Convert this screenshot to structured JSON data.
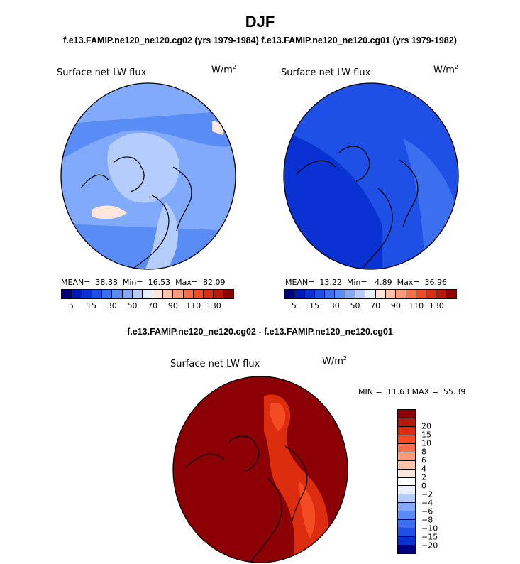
{
  "title": "DJF",
  "subtitle_left": "f.e13.FAMIP.ne120_ne120.cg02 (yrs 1979-1984)",
  "subtitle_right": "f.e13.FAMIP.ne120_ne120.cg01 (yrs 1979-1982)",
  "diff_title": "f.e13.FAMIP.ne120_ne120.cg02 - f.e13.FAMIP.ne120_ne120.cg01",
  "panels": [
    {
      "label": "Surface net LW flux",
      "unit_base": "W/m",
      "unit_exp": "2",
      "stats": "MEAN=  38.88  Min=  16.53  Max=  82.09"
    },
    {
      "label": "Surface net LW flux",
      "unit_base": "W/m",
      "unit_exp": "2",
      "stats": "MEAN=  13.22  Min=   4.89  Max=  36.96"
    }
  ],
  "diff_panel": {
    "label": "Surface net LW flux",
    "unit_base": "W/m",
    "unit_exp": "2",
    "stats": "MIN =  11.63 MAX =  55.39"
  },
  "abs_colorbar": {
    "colors": [
      "#00007d",
      "#0019b4",
      "#0a32d2",
      "#1e50e6",
      "#3c6ef0",
      "#5a8cf5",
      "#82aafa",
      "#b4cdfa",
      "#e6f0ff",
      "#ffe6dc",
      "#ffc3aa",
      "#ff9b78",
      "#ff6e46",
      "#f54b23",
      "#dc2d0f",
      "#b9190a",
      "#8c0005"
    ],
    "labels": [
      "5",
      "15",
      "30",
      "50",
      "70",
      "90",
      "110",
      "130"
    ]
  },
  "diff_colorbar": {
    "colors": [
      "#8c0005",
      "#b4190a",
      "#dc2d0f",
      "#f54b23",
      "#ff6e46",
      "#ff9b78",
      "#ffc3aa",
      "#ffe6dc",
      "#ffffff",
      "#e6f0ff",
      "#b4cdfa",
      "#82aafa",
      "#5a8cf5",
      "#3c6ef0",
      "#1e50e6",
      "#0a32d2",
      "#00007d"
    ],
    "labels": [
      "20",
      "15",
      "10",
      "8",
      "6",
      "4",
      "2",
      "0",
      "−2",
      "−4",
      "−6",
      "−8",
      "−10",
      "−15",
      "−20"
    ]
  },
  "map_colors": {
    "map1_base": "#82aafa",
    "map1_light": "#b4cdfa",
    "map1_dark": "#5a8cf5",
    "map1_warm": "#ffe6dc",
    "map2_base": "#1e50e6",
    "map2_dark": "#0a32d2",
    "map2_light": "#3c6ef0",
    "diff_base": "#8c0005",
    "diff_mid": "#dc2d0f",
    "diff_light": "#f54b23"
  }
}
